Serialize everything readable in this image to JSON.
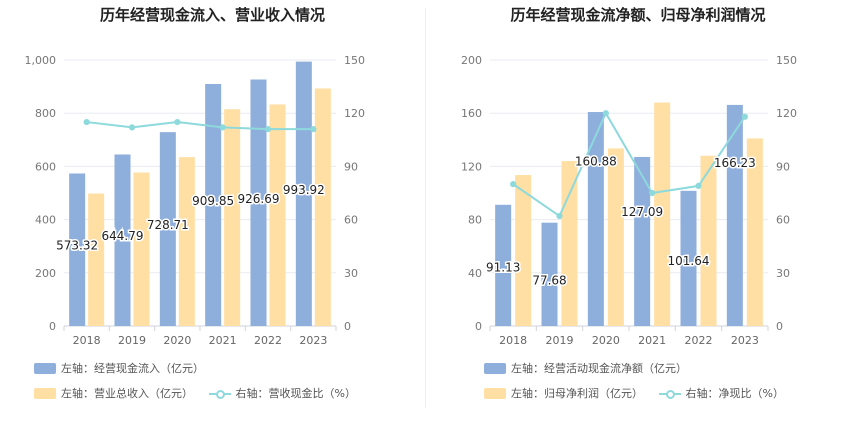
{
  "chart_data": [
    {
      "type": "bar",
      "title": "历年经营现金流入、营业收入情况",
      "categories": [
        "2018",
        "2019",
        "2020",
        "2021",
        "2022",
        "2023"
      ],
      "left_axis": {
        "ylim": [
          0,
          1000
        ],
        "ticks": [
          "0",
          "200",
          "400",
          "600",
          "800",
          "1,000"
        ]
      },
      "right_axis": {
        "ylim": [
          0,
          150
        ],
        "ticks": [
          "0",
          "30",
          "60",
          "90",
          "120",
          "150"
        ]
      },
      "series": [
        {
          "name": "左轴：经营现金流入（亿元）",
          "type": "bar",
          "axis": "left",
          "color": "#8eaedc",
          "values": [
            573.32,
            644.79,
            728.71,
            909.85,
            926.69,
            993.92
          ],
          "labels": [
            "573.32",
            "644.79",
            "728.71",
            "909.85",
            "926.69",
            "993.92"
          ]
        },
        {
          "name": "左轴：营业总收入（亿元）",
          "type": "bar",
          "axis": "left",
          "color": "#ffdfa3",
          "values": [
            498,
            577,
            635,
            815,
            833,
            893
          ]
        },
        {
          "name": "右轴：营收现金比（%）",
          "type": "line",
          "axis": "right",
          "color": "#8dd9dc",
          "values": [
            115,
            112,
            115,
            112,
            111,
            111
          ]
        }
      ],
      "grid": true,
      "legend_position": "bottom"
    },
    {
      "type": "bar",
      "title": "历年经营现金流净额、归母净利润情况",
      "categories": [
        "2018",
        "2019",
        "2020",
        "2021",
        "2022",
        "2023"
      ],
      "left_axis": {
        "ylim": [
          0,
          200
        ],
        "ticks": [
          "0",
          "40",
          "80",
          "120",
          "160",
          "200"
        ]
      },
      "right_axis": {
        "ylim": [
          0,
          150
        ],
        "ticks": [
          "0",
          "30",
          "60",
          "90",
          "120",
          "150"
        ]
      },
      "series": [
        {
          "name": "左轴：经营活动现金流净额（亿元）",
          "type": "bar",
          "axis": "left",
          "color": "#8eaedc",
          "values": [
            91.13,
            77.68,
            160.88,
            127.09,
            101.64,
            166.23
          ],
          "labels": [
            "91.13",
            "77.68",
            "160.88",
            "127.09",
            "101.64",
            "166.23"
          ]
        },
        {
          "name": "左轴：归母净利润（亿元）",
          "type": "bar",
          "axis": "left",
          "color": "#ffdfa3",
          "values": [
            113.5,
            124,
            133.5,
            168,
            128,
            141
          ]
        },
        {
          "name": "右轴：净现比（%）",
          "type": "line",
          "axis": "right",
          "color": "#8dd9dc",
          "values": [
            80,
            62,
            120,
            75,
            79,
            118
          ]
        }
      ],
      "grid": true,
      "legend_position": "bottom"
    }
  ]
}
